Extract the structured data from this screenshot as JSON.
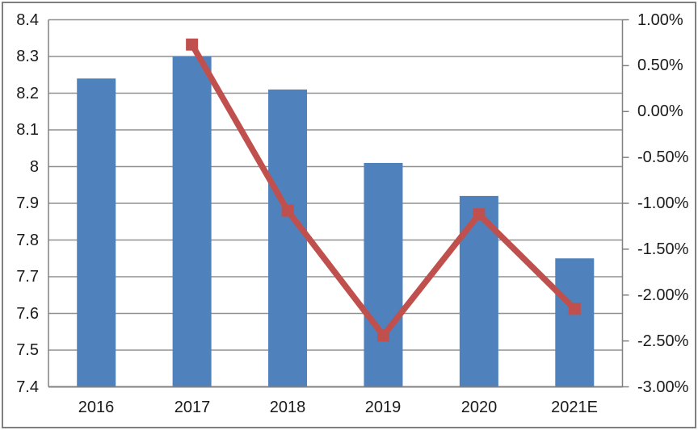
{
  "colors": {
    "bar": "#4F81BD",
    "line": "#C0504D",
    "marker": "#C0504D",
    "grid": "#909090",
    "axis": "#808080",
    "text": "#1A1A1A",
    "frame": "#7F7F7F",
    "background": "#FFFFFF"
  },
  "chart_data": {
    "type": "combo-bar-line",
    "title": "",
    "legend": "none",
    "grid": "horizontal",
    "categories": [
      "2016",
      "2017",
      "2018",
      "2019",
      "2020",
      "2021E"
    ],
    "series": [
      {
        "type": "bar",
        "axis": "left",
        "color": "#4F81BD",
        "values": [
          8.24,
          8.3,
          8.21,
          8.01,
          7.92,
          7.75
        ]
      },
      {
        "type": "line",
        "axis": "right",
        "color": "#C0504D",
        "marker": "square",
        "values_percent": [
          null,
          0.73,
          -1.08,
          -2.44,
          -1.12,
          -2.15
        ]
      }
    ],
    "left_axis": {
      "min": 7.4,
      "max": 8.4,
      "step": 0.1,
      "labels": [
        "8.4",
        "8.3",
        "8.2",
        "8.1",
        "8",
        "7.9",
        "7.8",
        "7.7",
        "7.6",
        "7.5",
        "7.4"
      ]
    },
    "right_axis": {
      "min": -3.0,
      "max": 1.0,
      "step": 0.5,
      "labels": [
        "1.00%",
        "0.50%",
        "0.00%",
        "-0.50%",
        "-1.00%",
        "-1.50%",
        "-2.00%",
        "-2.50%",
        "-3.00%"
      ]
    }
  }
}
